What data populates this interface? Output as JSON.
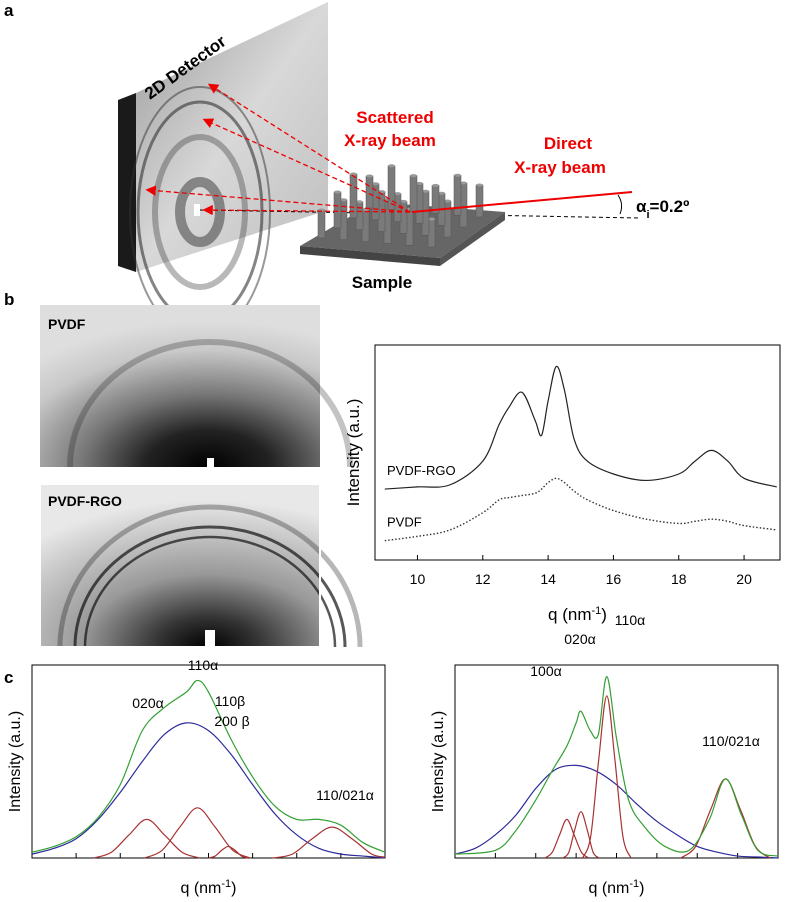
{
  "diagram": {
    "panel_a": "a",
    "detector": "2D Detector",
    "scattered": [
      "Scattered",
      "X-ray beam"
    ],
    "direct": [
      "Direct",
      "X-ray beam"
    ],
    "angle": [
      "α",
      "i",
      "=0.2º"
    ],
    "sample": "Sample"
  },
  "panel_b": "b",
  "images": [
    "PVDF",
    "PVDF-RGO"
  ],
  "panel_c": "c",
  "chart_data": [
    {
      "type": "line",
      "xlabel": [
        "q (nm",
        "-1",
        ")"
      ],
      "ylabel": "Intensity (a.u.)",
      "x": [
        9,
        10,
        11,
        12,
        12.5,
        12.8,
        13.2,
        13.6,
        13.8,
        14,
        14.25,
        14.5,
        14.8,
        15.2,
        16,
        17,
        18,
        18.5,
        19,
        19.5,
        20,
        21
      ],
      "series": [
        {
          "name": "PVDF-RGO",
          "color": "#222222",
          "dash": "solid",
          "values": [
            33,
            34,
            35,
            46,
            63,
            71,
            78,
            65,
            58,
            74,
            90,
            79,
            56,
            46,
            40,
            37,
            40,
            46,
            51,
            46,
            38,
            34
          ]
        },
        {
          "name": "PVDF",
          "color": "#333333",
          "dash": "dotted",
          "values": [
            9,
            11,
            14,
            22,
            28,
            29,
            30,
            31,
            33,
            36,
            38,
            36,
            32,
            28,
            23,
            19,
            17,
            18,
            19,
            18,
            16,
            14
          ]
        }
      ],
      "xlim": [
        8.7,
        21.1
      ],
      "ylim": [
        0,
        100
      ],
      "xticks": [
        10,
        12,
        14,
        16,
        18,
        20
      ],
      "xtick_labels": true
    },
    {
      "type": "line",
      "xlabel": [
        "q (nm",
        "-1",
        ")"
      ],
      "ylabel": "Intensity (a.u.)",
      "annotations": [
        "020α",
        "110α",
        "110β",
        "200 β",
        "110/021α"
      ],
      "series": [
        {
          "color": "#2b2b9a",
          "x": [
            0,
            0.5,
            1,
            1.5,
            2,
            2.5,
            3,
            3.5,
            4,
            4.5,
            5,
            5.5,
            6,
            6.5,
            7,
            7.5,
            8
          ],
          "values": [
            2,
            5,
            10,
            20,
            34,
            50,
            64,
            70,
            66,
            54,
            38,
            23,
            12,
            5,
            2,
            1,
            0
          ]
        },
        {
          "color": "#a83232",
          "x": [
            1.4,
            1.8,
            2.2,
            2.6,
            3.0,
            3.4,
            3.8
          ],
          "values": [
            0,
            3,
            12,
            20,
            12,
            3,
            0
          ]
        },
        {
          "color": "#a83232",
          "x": [
            2.55,
            2.95,
            3.35,
            3.75,
            4.15,
            4.55,
            4.95
          ],
          "values": [
            0,
            4,
            16,
            26,
            16,
            4,
            0
          ]
        },
        {
          "color": "#a83232",
          "x": [
            4.0,
            4.15,
            4.3,
            4.45,
            4.6,
            4.75,
            4.9
          ],
          "values": [
            0,
            1,
            4,
            6,
            4,
            1,
            0
          ]
        },
        {
          "color": "#a83232",
          "x": [
            5.45,
            5.9,
            6.35,
            6.8,
            7.25,
            7.7,
            8.0
          ],
          "values": [
            0,
            2,
            10,
            16,
            10,
            2,
            0.5
          ]
        },
        {
          "color": "#33a033",
          "x": [
            0,
            0.5,
            1,
            1.5,
            2,
            2.5,
            3,
            3.5,
            3.75,
            4,
            4.5,
            5,
            5.5,
            6,
            6.5,
            7,
            7.5,
            8
          ],
          "values": [
            3,
            6,
            11,
            21,
            38,
            66,
            78,
            86,
            92,
            86,
            62,
            42,
            27,
            20,
            20,
            17,
            8,
            3
          ]
        }
      ],
      "xlim": [
        0,
        8
      ],
      "ylim": [
        0,
        100
      ],
      "xticks": [
        1,
        2,
        3,
        4,
        5,
        6,
        7
      ],
      "xtick_labels": false
    },
    {
      "type": "line",
      "xlabel": [
        "q (nm",
        "-1",
        ")"
      ],
      "ylabel": "Intensity (a.u.)",
      "annotations": [
        "100α",
        "020α",
        "110α",
        "110/021α"
      ],
      "series": [
        {
          "color": "#2b2b9a",
          "x": [
            0,
            0.5,
            1,
            1.5,
            2,
            2.5,
            3,
            3.5,
            4,
            4.5,
            5,
            5.5,
            6,
            6.5,
            7,
            7.5,
            8
          ],
          "values": [
            2,
            5,
            12,
            22,
            36,
            46,
            48,
            45,
            38,
            28,
            19,
            12,
            6,
            3,
            1,
            0.5,
            0
          ]
        },
        {
          "color": "#a83232",
          "x": [
            2.23,
            2.41,
            2.59,
            2.77,
            2.95,
            3.13,
            3.31
          ],
          "values": [
            0,
            3,
            12,
            20,
            12,
            3,
            0
          ]
        },
        {
          "color": "#a83232",
          "x": [
            2.67,
            2.82,
            2.97,
            3.12,
            3.27,
            3.42,
            3.57
          ],
          "values": [
            0,
            3,
            15,
            24,
            15,
            3,
            0
          ]
        },
        {
          "color": "#a83232",
          "x": [
            3.16,
            3.36,
            3.56,
            3.76,
            3.96,
            4.16,
            4.36
          ],
          "values": [
            0,
            11,
            51,
            84,
            51,
            11,
            0
          ]
        },
        {
          "color": "#a83232",
          "x": [
            5.59,
            5.96,
            6.33,
            6.7,
            7.07,
            7.44,
            7.81
          ],
          "values": [
            0,
            6,
            25,
            41,
            25,
            6,
            0
          ]
        },
        {
          "color": "#33a033",
          "x": [
            0,
            1,
            1.5,
            2,
            2.4,
            2.77,
            3.0,
            3.12,
            3.35,
            3.55,
            3.76,
            4.0,
            4.3,
            4.7,
            5.2,
            5.8,
            6.3,
            6.7,
            7.1,
            7.5,
            8
          ],
          "values": [
            2,
            4,
            14,
            30,
            45,
            58,
            70,
            76,
            66,
            64,
            94,
            62,
            30,
            16,
            6,
            4,
            20,
            41,
            22,
            4,
            1
          ]
        }
      ],
      "xlim": [
        0,
        8
      ],
      "ylim": [
        0,
        100
      ],
      "xticks": [
        1,
        2,
        3,
        4,
        5,
        6,
        7
      ],
      "xtick_labels": false
    }
  ]
}
